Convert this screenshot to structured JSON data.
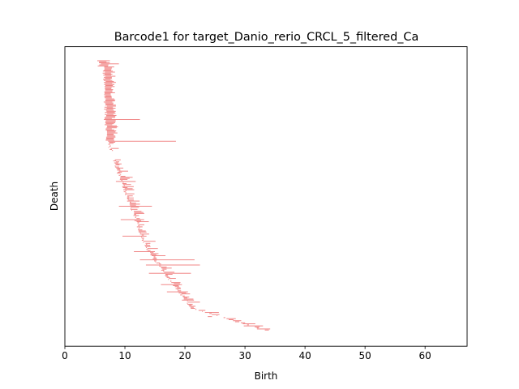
{
  "chart_data": {
    "type": "barcode",
    "title": "Barcode1 for target_Danio_rerio_CRCL_5_filtered_Ca",
    "xlabel": "Birth",
    "ylabel": "Death",
    "xlim": [
      0,
      67
    ],
    "xticks": [
      "0",
      "10",
      "20",
      "30",
      "40",
      "50",
      "60"
    ],
    "bar_color": "#f08080",
    "grid": false,
    "legend": "none",
    "bar_count": 262,
    "bars": [
      {
        "birth": 5.4,
        "death": 7.5
      },
      {
        "birth": 6.0,
        "death": 9.0
      },
      {
        "birth": 6.5,
        "death": 8.5
      },
      {
        "birth": 7.0,
        "death": 8.5
      },
      {
        "birth": 6.5,
        "death": 12.5
      },
      {
        "birth": 7.2,
        "death": 18.5
      },
      {
        "birth": 8.5,
        "death": 11.8
      },
      {
        "birth": 9.0,
        "death": 14.5
      },
      {
        "birth": 9.3,
        "death": 13.2
      },
      {
        "birth": 9.6,
        "death": 13.6
      },
      {
        "birth": 11.5,
        "death": 15.0
      },
      {
        "birth": 12.5,
        "death": 21.6
      },
      {
        "birth": 13.5,
        "death": 22.5
      },
      {
        "birth": 14.0,
        "death": 21.0
      },
      {
        "birth": 16.0,
        "death": 19.5
      },
      {
        "birth": 17.0,
        "death": 20.5
      },
      {
        "birth": 19.5,
        "death": 21.5
      },
      {
        "birth": 23.8,
        "death": 24.5
      },
      {
        "birth": 29.8,
        "death": 33.0
      },
      {
        "birth": 32.0,
        "death": 34.2
      }
    ]
  }
}
